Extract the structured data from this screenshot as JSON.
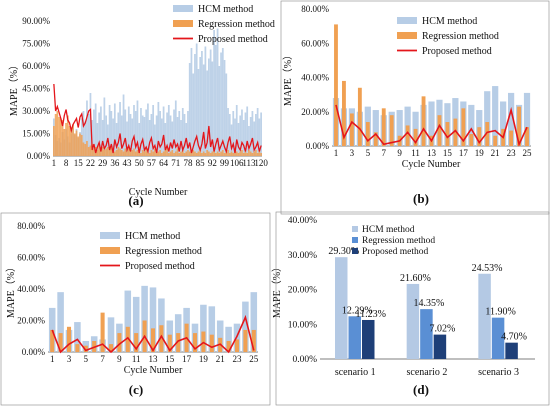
{
  "colors": {
    "hcm": "#b7cde6",
    "regression": "#f0a052",
    "proposed": "#e4161b",
    "scn_hcm": "#b4c9e4",
    "scn_regression": "#5a8fd4",
    "scn_proposed": "#1e3f78"
  },
  "chart_data": [
    {
      "panel": "(a)",
      "type": "bar",
      "xlabel": "Cycle Number",
      "ylabel": "MAPE（%）",
      "ylim": [
        0,
        90
      ],
      "yticks": [
        "0.00%",
        "15.00%",
        "30.00%",
        "45.00%",
        "60.00%",
        "75.00%",
        "90.00%"
      ],
      "xticks": [
        "1",
        "8",
        "15",
        "22",
        "29",
        "36",
        "43",
        "50",
        "57",
        "64",
        "71",
        "78",
        "85",
        "92",
        "99",
        "106",
        "113",
        "120"
      ],
      "legend": [
        "HCM method",
        "Regression method",
        "Proposed method"
      ],
      "legend_position": "top-right",
      "series": [
        {
          "name": "HCM method",
          "type": "bar",
          "values": [
            25,
            14,
            10,
            12,
            9,
            16,
            11,
            18,
            13,
            9,
            15,
            21,
            14,
            18,
            12,
            16,
            25,
            30,
            23,
            37,
            28,
            42,
            24,
            31,
            35,
            22,
            29,
            33,
            24,
            39,
            27,
            21,
            34,
            30,
            25,
            35,
            22,
            29,
            36,
            27,
            41,
            31,
            23,
            33,
            28,
            25,
            34,
            30,
            37,
            22,
            32,
            27,
            26,
            31,
            35,
            24,
            28,
            34,
            21,
            27,
            36,
            30,
            25,
            33,
            22,
            29,
            34,
            27,
            23,
            31,
            37,
            26,
            30,
            24,
            32,
            28,
            22,
            30,
            62,
            72,
            55,
            68,
            75,
            58,
            66,
            70,
            61,
            73,
            57,
            65,
            71,
            63,
            84,
            74,
            85,
            60,
            69,
            72,
            64,
            55,
            32,
            28,
            21,
            30,
            25,
            34,
            22,
            27,
            31,
            24,
            29,
            33,
            20,
            26,
            30,
            23,
            28,
            32,
            25,
            29
          ]
        },
        {
          "name": "Regression method",
          "type": "bar",
          "values": [
            20,
            28,
            30,
            26,
            25,
            24,
            18,
            22,
            27,
            20,
            19,
            21,
            15,
            17,
            13,
            15,
            14,
            9,
            8,
            10,
            6,
            7,
            8,
            5,
            6,
            4,
            7,
            5,
            6,
            4,
            5,
            6,
            4,
            7,
            5,
            3,
            4,
            6,
            5,
            4,
            3,
            5,
            4,
            6,
            3,
            4,
            5,
            3,
            4,
            6,
            2,
            4,
            3,
            5,
            3,
            2,
            4,
            3,
            5,
            2,
            3,
            4,
            2,
            3,
            4,
            5,
            2,
            3,
            4,
            2,
            3,
            5,
            2,
            3,
            4,
            2,
            3,
            4,
            3,
            2,
            4,
            3,
            2,
            3,
            4,
            2,
            3,
            2,
            4,
            3,
            2,
            3,
            4,
            2,
            3,
            2,
            3,
            4,
            2,
            3,
            4,
            2,
            3,
            2,
            4,
            3,
            2,
            3,
            4,
            2,
            3,
            2,
            4,
            3,
            2,
            3,
            4,
            2,
            3,
            2
          ]
        },
        {
          "name": "Proposed method",
          "type": "line",
          "values": [
            48,
            30,
            33,
            29,
            25,
            20,
            27,
            31,
            24,
            22,
            17,
            21,
            23,
            25,
            19,
            26,
            28,
            20,
            22,
            26,
            30,
            31,
            4,
            8,
            2,
            6,
            9,
            3,
            10,
            5,
            7,
            12,
            4,
            8,
            2,
            11,
            6,
            9,
            15,
            5,
            8,
            12,
            4,
            7,
            3,
            10,
            13,
            6,
            9,
            2,
            8,
            11,
            4,
            6,
            3,
            9,
            12,
            5,
            7,
            2,
            10,
            6,
            8,
            14,
            4,
            7,
            3,
            9,
            5,
            11,
            6,
            8,
            3,
            10,
            4,
            7,
            12,
            5,
            9,
            2,
            6,
            10,
            13,
            7,
            4,
            8,
            16,
            5,
            9,
            20,
            6,
            11,
            3,
            8,
            12,
            4,
            7,
            10,
            6,
            3,
            9,
            13,
            5,
            8,
            2,
            11,
            6,
            4,
            9,
            7,
            3,
            10,
            5,
            8,
            12,
            4,
            6,
            9,
            3,
            7
          ]
        }
      ]
    },
    {
      "panel": "(b)",
      "type": "bar",
      "xlabel": "Cycle Number",
      "ylabel": "MAPE（%）",
      "ylim": [
        0,
        80
      ],
      "yticks": [
        "0.00%",
        "20.00%",
        "40.00%",
        "60.00%",
        "80.00%"
      ],
      "xticks": [
        "1",
        "3",
        "5",
        "7",
        "9",
        "11",
        "13",
        "15",
        "17",
        "19",
        "21",
        "23",
        "25"
      ],
      "legend": [
        "HCM method",
        "Regression method",
        "Proposed method"
      ],
      "legend_position": "top-right",
      "series": [
        {
          "name": "HCM method",
          "type": "bar",
          "values": [
            28,
            22,
            22,
            20,
            23,
            21,
            18,
            20,
            21,
            23,
            20,
            24,
            26,
            27,
            25,
            28,
            26,
            24,
            21,
            32,
            35,
            26,
            31,
            24,
            31
          ]
        },
        {
          "name": "Regression method",
          "type": "bar",
          "values": [
            71,
            38,
            19,
            34,
            14,
            8,
            22,
            18,
            6,
            12,
            10,
            29,
            6,
            18,
            14,
            16,
            22,
            7,
            11,
            14,
            6,
            10,
            9,
            23,
            11
          ]
        },
        {
          "name": "Proposed method",
          "type": "line",
          "values": [
            24,
            5,
            14,
            10,
            3,
            7,
            1,
            2,
            3,
            8,
            2,
            10,
            3,
            12,
            5,
            9,
            3,
            10,
            2,
            8,
            9,
            5,
            21,
            1,
            11
          ]
        }
      ]
    },
    {
      "panel": "(c)",
      "type": "bar",
      "xlabel": "Cycle Number",
      "ylabel": "MAPE（%）",
      "ylim": [
        0,
        80
      ],
      "yticks": [
        "0.00%",
        "20.00%",
        "40.00%",
        "60.00%",
        "80.00%"
      ],
      "xticks": [
        "1",
        "3",
        "5",
        "7",
        "9",
        "11",
        "13",
        "15",
        "17",
        "19",
        "21",
        "23",
        "25"
      ],
      "legend": [
        "HCM method",
        "Regression method",
        "Proposed method"
      ],
      "legend_position": "top-right",
      "series": [
        {
          "name": "HCM method",
          "type": "bar",
          "values": [
            28,
            38,
            14,
            19,
            7,
            10,
            8,
            22,
            18,
            39,
            35,
            42,
            41,
            34,
            20,
            24,
            28,
            18,
            30,
            29,
            20,
            16,
            18,
            32,
            38
          ]
        },
        {
          "name": "Regression method",
          "type": "bar",
          "values": [
            14,
            12,
            16,
            5,
            4,
            7,
            25,
            5,
            12,
            16,
            12,
            20,
            15,
            17,
            11,
            12,
            18,
            12,
            13,
            11,
            9,
            7,
            8,
            14,
            14
          ]
        },
        {
          "name": "Proposed method",
          "type": "line",
          "values": [
            14,
            0,
            5,
            8,
            1,
            3,
            5,
            0,
            5,
            9,
            2,
            10,
            1,
            10,
            1,
            7,
            9,
            2,
            6,
            3,
            5,
            0,
            10,
            22,
            1
          ]
        }
      ]
    },
    {
      "panel": "(d)",
      "type": "bar",
      "ylabel": "MAPE（%）",
      "ylim": [
        0,
        40
      ],
      "yticks": [
        "0.00%",
        "10.00%",
        "20.00%",
        "30.00%",
        "40.00%"
      ],
      "categories": [
        "scenario 1",
        "scenario 2",
        "scenario 3"
      ],
      "legend": [
        "HCM method",
        "Regression method",
        "Proposed method"
      ],
      "legend_position": "top-right",
      "series": [
        {
          "name": "HCM method",
          "values": [
            29.3,
            21.6,
            24.53
          ],
          "labels": [
            "29.30%",
            "21.60%",
            "24.53%"
          ]
        },
        {
          "name": "Regression method",
          "values": [
            12.29,
            14.35,
            11.9
          ],
          "labels": [
            "12.29%",
            "14.35%",
            "11.90%"
          ]
        },
        {
          "name": "Proposed method",
          "values": [
            11.23,
            7.02,
            4.7
          ],
          "labels": [
            "11.23%",
            "7.02%",
            "4.70%"
          ]
        }
      ]
    }
  ]
}
